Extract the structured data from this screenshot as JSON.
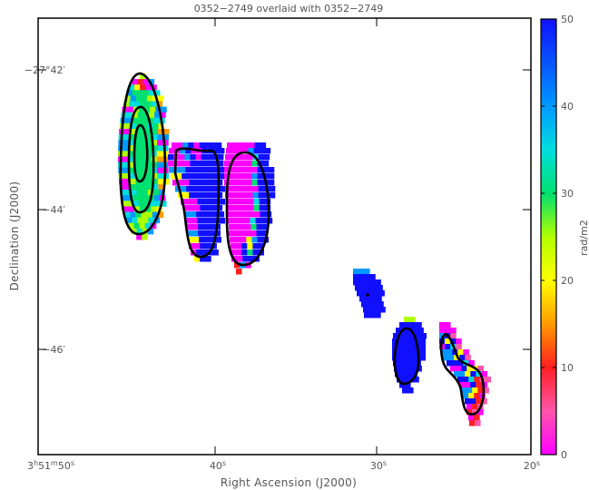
{
  "chart_data": {
    "type": "heatmap",
    "title": "0352−2749 overlaid with 0352−2749",
    "xlabel": "Right Ascension (J2000)",
    "ylabel": "Declination (J2000)",
    "x_ticks": [
      {
        "label": "3h51m50s",
        "parts": [
          "3",
          "h",
          "51",
          "m",
          "50",
          "s"
        ],
        "value_sec": 50
      },
      {
        "label": "40s",
        "parts": [
          "40",
          "s"
        ],
        "value_sec": 40
      },
      {
        "label": "30s",
        "parts": [
          "30",
          "s"
        ],
        "value_sec": 30
      },
      {
        "label": "20s",
        "parts": [
          "20",
          "s"
        ],
        "value_sec": 20
      }
    ],
    "y_ticks": [
      {
        "label": "−27°42′",
        "value_arcmin": -42
      },
      {
        "label": "−44′",
        "value_arcmin": -44
      },
      {
        "label": "−46′",
        "value_arcmin": -46
      }
    ],
    "colorbar": {
      "label": "rad/m2",
      "range": [
        0,
        50
      ],
      "ticks": [
        "0",
        "10",
        "20",
        "30",
        "40",
        "50"
      ]
    },
    "colors": {
      "c0": "#ff00ff",
      "c5": "#ff55aa",
      "c10": "#ff2020",
      "c15": "#ff9a00",
      "c20": "#ffff00",
      "c25": "#b0ff00",
      "c30": "#00e070",
      "c35": "#00dddd",
      "c40": "#0099ff",
      "c50": "#1010ff"
    },
    "regions": [
      {
        "id": "source-1",
        "ra_sec": 45.6,
        "dec_arcmin": -43.1,
        "dominant_value": 30
      },
      {
        "id": "source-2",
        "ra_sec": 41.2,
        "dec_arcmin": -43.7,
        "dominant_value": 50
      },
      {
        "id": "source-3",
        "ra_sec": 38.2,
        "dec_arcmin": -43.9,
        "dominant_value": 0
      },
      {
        "id": "source-4",
        "ra_sec": 30.8,
        "dec_arcmin": -45.2,
        "dominant_value": 50
      },
      {
        "id": "source-5",
        "ra_sec": 27.8,
        "dec_arcmin": -46.1,
        "dominant_value": 50
      },
      {
        "id": "source-6",
        "ra_sec": 24.2,
        "dec_arcmin": -46.4,
        "dominant_value": 50
      }
    ]
  }
}
